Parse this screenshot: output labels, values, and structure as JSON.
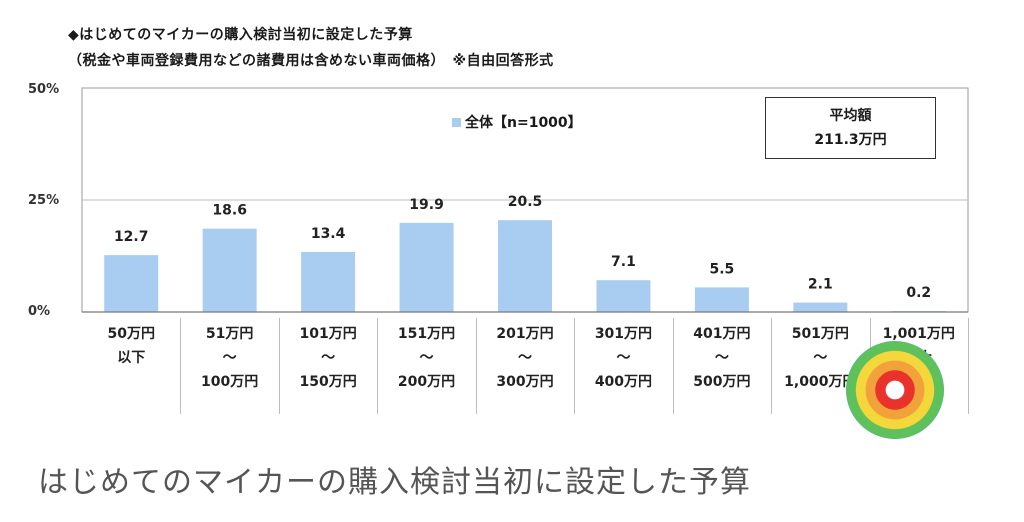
{
  "header": {
    "title_line1": "◆はじめてのマイカーの購入検討当初に設定した予算",
    "title_line2": "（税金や車両登録費用などの諸費用は含めない車両価格）　※自由回答形式"
  },
  "legend": {
    "label": "全体【n=1000】"
  },
  "average_box": {
    "label": "平均額",
    "value": "211.3万円"
  },
  "chart_data": {
    "type": "bar",
    "ylim": [
      0,
      50
    ],
    "yticks": [
      "50%",
      "25%",
      "0%"
    ],
    "grid": true,
    "legend_position": "top-center",
    "categories": [
      [
        "50万円",
        "以下"
      ],
      [
        "51万円",
        "～",
        "100万円"
      ],
      [
        "101万円",
        "～",
        "150万円"
      ],
      [
        "151万円",
        "～",
        "200万円"
      ],
      [
        "201万円",
        "～",
        "300万円"
      ],
      [
        "301万円",
        "～",
        "400万円"
      ],
      [
        "401万円",
        "～",
        "500万円"
      ],
      [
        "501万円",
        "～",
        "1,000万円"
      ],
      [
        "1,001万円",
        "以上"
      ]
    ],
    "series": [
      {
        "name": "全体【n=1000】",
        "values": [
          12.7,
          18.6,
          13.4,
          19.9,
          20.5,
          7.1,
          5.5,
          2.1,
          0.2
        ]
      }
    ],
    "bar_color": "#a9cdf1"
  },
  "caption": "はじめてのマイカーの購入検討当初に設定した予算"
}
